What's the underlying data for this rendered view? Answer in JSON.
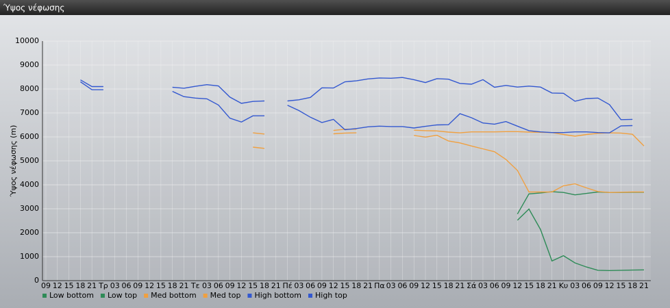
{
  "chart_data": {
    "type": "line",
    "title": "Ύψος νέφωσης",
    "y_label": "Ύψος νέφωσης (m)",
    "categories": [
      "09",
      "12",
      "15",
      "18",
      "21",
      "Τρ",
      "03",
      "06",
      "09",
      "12",
      "15",
      "18",
      "21",
      "Τε",
      "03",
      "06",
      "09",
      "12",
      "15",
      "18",
      "21",
      "Πέ",
      "03",
      "06",
      "09",
      "12",
      "15",
      "18",
      "21",
      "Πα",
      "03",
      "06",
      "09",
      "12",
      "15",
      "18",
      "21",
      "Σά",
      "03",
      "06",
      "09",
      "12",
      "15",
      "18",
      "21",
      "Κυ",
      "03",
      "06",
      "09",
      "12",
      "15",
      "18",
      "21"
    ],
    "ylim": [
      0,
      10000
    ],
    "yticks": [
      0,
      1000,
      2000,
      3000,
      4000,
      5000,
      6000,
      7000,
      8000,
      9000,
      10000
    ],
    "grid": true,
    "series": [
      {
        "name": "Low bottom",
        "color": "#2e8b57",
        "values": [
          null,
          null,
          null,
          null,
          null,
          null,
          null,
          null,
          null,
          null,
          null,
          null,
          null,
          null,
          null,
          null,
          null,
          null,
          null,
          null,
          null,
          null,
          null,
          null,
          null,
          null,
          null,
          null,
          null,
          null,
          null,
          null,
          null,
          null,
          null,
          null,
          null,
          null,
          null,
          null,
          null,
          2520,
          2990,
          2140,
          820,
          1040,
          740,
          570,
          430,
          420,
          430,
          440,
          450
        ]
      },
      {
        "name": "Low top",
        "color": "#2e8b57",
        "values": [
          null,
          null,
          null,
          null,
          null,
          null,
          null,
          null,
          null,
          null,
          null,
          null,
          null,
          null,
          null,
          null,
          null,
          null,
          null,
          null,
          null,
          null,
          null,
          null,
          null,
          null,
          null,
          null,
          null,
          null,
          null,
          null,
          null,
          null,
          null,
          null,
          null,
          null,
          null,
          null,
          null,
          2780,
          3620,
          3660,
          3710,
          3680,
          3580,
          3640,
          3700,
          3680,
          3680,
          3690,
          3690
        ]
      },
      {
        "name": "Med bottom",
        "color": "#f0a040",
        "values": [
          null,
          null,
          null,
          null,
          null,
          null,
          null,
          null,
          null,
          null,
          null,
          null,
          null,
          null,
          null,
          null,
          null,
          null,
          5570,
          5520,
          null,
          null,
          null,
          null,
          null,
          6130,
          6160,
          6170,
          null,
          null,
          null,
          null,
          6060,
          5990,
          6070,
          5830,
          5750,
          5620,
          5500,
          5380,
          5060,
          4600,
          3700,
          3700,
          3700,
          3960,
          4040,
          3870,
          3720,
          3680,
          3690,
          3700,
          3700
        ]
      },
      {
        "name": "Med top",
        "color": "#f0a040",
        "values": [
          null,
          null,
          null,
          null,
          null,
          null,
          null,
          null,
          null,
          null,
          null,
          null,
          null,
          null,
          null,
          null,
          null,
          null,
          6170,
          6120,
          null,
          null,
          null,
          null,
          null,
          6270,
          6320,
          6320,
          null,
          null,
          null,
          null,
          6280,
          6260,
          6250,
          6200,
          6170,
          6210,
          6210,
          6210,
          6220,
          6220,
          6200,
          6190,
          6180,
          6100,
          6030,
          6100,
          6150,
          6170,
          6160,
          6110,
          5620
        ]
      },
      {
        "name": "High bottom",
        "color": "#3358d0",
        "values": [
          null,
          null,
          null,
          8300,
          7970,
          7970,
          null,
          null,
          null,
          null,
          null,
          7900,
          7680,
          7620,
          7590,
          7330,
          6780,
          6620,
          6880,
          6880,
          null,
          7320,
          7100,
          6820,
          6600,
          6730,
          6300,
          6350,
          6420,
          6450,
          6430,
          6430,
          6370,
          6440,
          6500,
          6510,
          6970,
          6800,
          6580,
          6530,
          6640,
          6450,
          6260,
          6210,
          6180,
          6180,
          6210,
          6210,
          6180,
          6170,
          6460,
          6470,
          null
        ]
      },
      {
        "name": "High top",
        "color": "#3358d0",
        "values": [
          null,
          null,
          null,
          8380,
          8100,
          8100,
          null,
          null,
          null,
          null,
          null,
          8070,
          8030,
          8110,
          8180,
          8130,
          7660,
          7400,
          7480,
          7500,
          null,
          7500,
          7550,
          7650,
          8050,
          8040,
          8300,
          8340,
          8420,
          8460,
          8450,
          8480,
          8390,
          8270,
          8430,
          8410,
          8230,
          8200,
          8390,
          8070,
          8150,
          8080,
          8120,
          8080,
          7830,
          7820,
          7490,
          7600,
          7620,
          7350,
          6720,
          6730,
          null
        ]
      }
    ]
  }
}
